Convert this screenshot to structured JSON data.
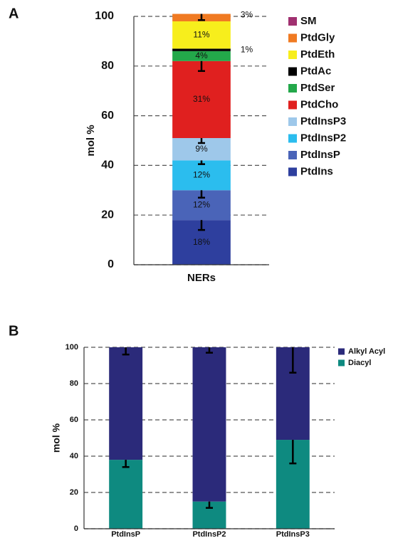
{
  "chart_data": [
    {
      "type": "stacked_bar",
      "panel": "A",
      "ylabel": "mol %",
      "categories": [
        "NERs"
      ],
      "ylim": [
        0,
        100
      ],
      "yticks": [
        0,
        20,
        40,
        60,
        80,
        100
      ],
      "grid": true,
      "legend": "right",
      "series": [
        {
          "name": "PtdIns",
          "color": "#2e3f9e",
          "values": [
            18
          ],
          "value_labels": [
            "18%"
          ],
          "errors": [
            4
          ]
        },
        {
          "name": "PtdInsP",
          "color": "#4a64b8",
          "values": [
            12
          ],
          "value_labels": [
            "12%"
          ],
          "errors": [
            3
          ]
        },
        {
          "name": "PtdInsP2",
          "color": "#2bbdee",
          "values": [
            12
          ],
          "value_labels": [
            "12%"
          ],
          "errors": [
            1.5
          ]
        },
        {
          "name": "PtdInsP3",
          "color": "#9ec8ea",
          "values": [
            9
          ],
          "value_labels": [
            "9%"
          ],
          "errors": [
            2
          ]
        },
        {
          "name": "PtdCho",
          "color": "#e0201f",
          "values": [
            31
          ],
          "value_labels": [
            "31%"
          ],
          "errors": [
            4
          ]
        },
        {
          "name": "PtdSer",
          "color": "#23a84a",
          "values": [
            4
          ],
          "value_labels": [
            "4%"
          ],
          "errors": [
            null
          ]
        },
        {
          "name": "PtdAc",
          "color": "#000000",
          "values": [
            1
          ],
          "value_labels": [
            "1%"
          ],
          "errors": [
            null
          ]
        },
        {
          "name": "PtdEth",
          "color": "#f7ee1c",
          "values": [
            11
          ],
          "value_labels": [
            "11%"
          ],
          "errors": [
            null
          ]
        },
        {
          "name": "PtdGly",
          "color": "#f07a22",
          "values": [
            3
          ],
          "value_labels": [
            "3%"
          ],
          "errors": [
            2.5
          ]
        },
        {
          "name": "SM",
          "color": "#a03070",
          "values": [
            0
          ],
          "errors": [
            null
          ]
        }
      ]
    },
    {
      "type": "stacked_bar",
      "panel": "B",
      "ylabel": "mol %",
      "categories": [
        "PtdInsP",
        "PtdInsP2",
        "PtdInsP3"
      ],
      "ylim": [
        0,
        100
      ],
      "yticks": [
        0,
        20,
        40,
        60,
        80,
        100
      ],
      "grid": true,
      "legend": "right",
      "series": [
        {
          "name": "Diacyl",
          "color": "#0e8a80",
          "values": [
            38,
            15,
            49
          ],
          "errors": [
            4,
            3.5,
            13
          ]
        },
        {
          "name": "Alkyl Acyl",
          "color": "#2b2a7a",
          "values": [
            62,
            85,
            51
          ],
          "errors": [
            4,
            3,
            14
          ]
        }
      ]
    }
  ]
}
